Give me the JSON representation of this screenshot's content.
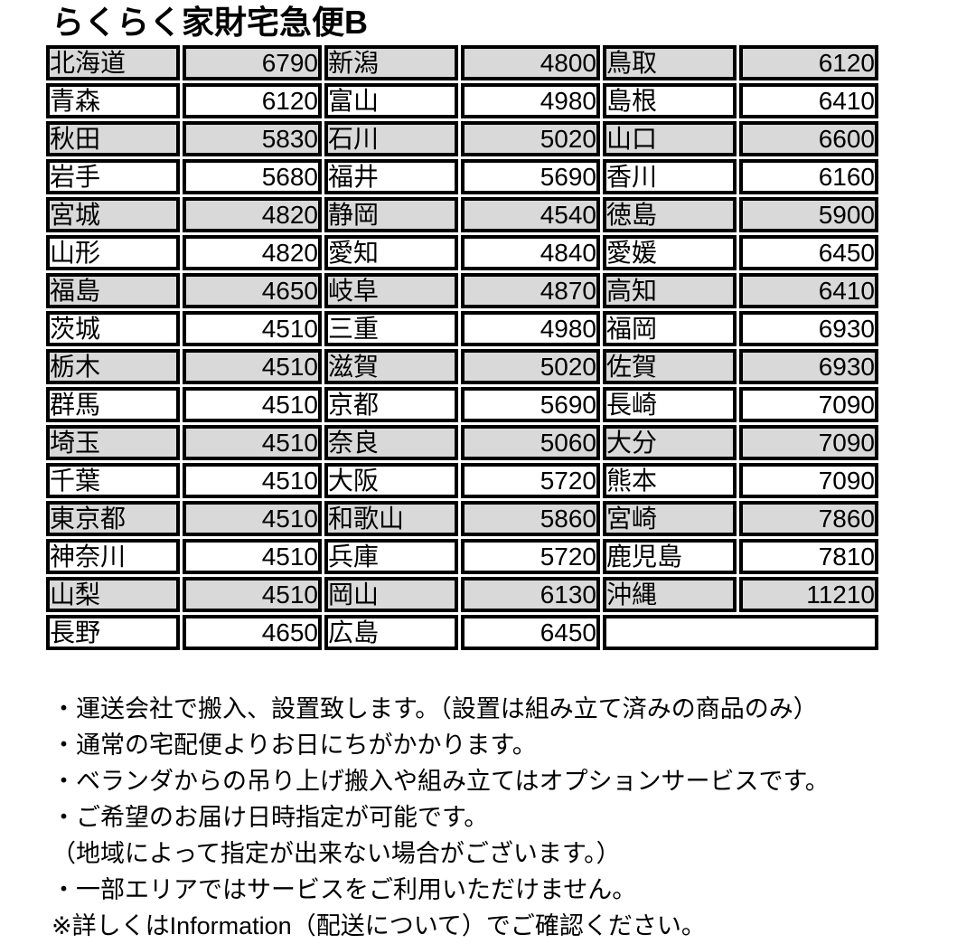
{
  "title": "らくらく家財宅急便B",
  "colors": {
    "row_shaded": "#d9d9d9",
    "border": "#000000",
    "background": "#ffffff"
  },
  "table": {
    "sections": [
      {
        "rows": [
          {
            "region": "北海道",
            "price": "6790"
          },
          {
            "region": "青森",
            "price": "6120"
          },
          {
            "region": "秋田",
            "price": "5830"
          },
          {
            "region": "岩手",
            "price": "5680"
          },
          {
            "region": "宮城",
            "price": "4820"
          },
          {
            "region": "山形",
            "price": "4820"
          },
          {
            "region": "福島",
            "price": "4650"
          },
          {
            "region": "茨城",
            "price": "4510"
          },
          {
            "region": "栃木",
            "price": "4510"
          },
          {
            "region": "群馬",
            "price": "4510"
          },
          {
            "region": "埼玉",
            "price": "4510"
          },
          {
            "region": "千葉",
            "price": "4510"
          },
          {
            "region": "東京都",
            "price": "4510"
          },
          {
            "region": "神奈川",
            "price": "4510"
          },
          {
            "region": "山梨",
            "price": "4510"
          },
          {
            "region": "長野",
            "price": "4650"
          }
        ]
      },
      {
        "rows": [
          {
            "region": "新潟",
            "price": "4800"
          },
          {
            "region": "富山",
            "price": "4980"
          },
          {
            "region": "石川",
            "price": "5020"
          },
          {
            "region": "福井",
            "price": "5690"
          },
          {
            "region": "静岡",
            "price": "4540"
          },
          {
            "region": "愛知",
            "price": "4840"
          },
          {
            "region": "岐阜",
            "price": "4870"
          },
          {
            "region": "三重",
            "price": "4980"
          },
          {
            "region": "滋賀",
            "price": "5020"
          },
          {
            "region": "京都",
            "price": "5690"
          },
          {
            "region": "奈良",
            "price": "5060"
          },
          {
            "region": "大阪",
            "price": "5720"
          },
          {
            "region": "和歌山",
            "price": "5860"
          },
          {
            "region": "兵庫",
            "price": "5720"
          },
          {
            "region": "岡山",
            "price": "6130"
          },
          {
            "region": "広島",
            "price": "6450"
          }
        ]
      },
      {
        "rows": [
          {
            "region": "鳥取",
            "price": "6120"
          },
          {
            "region": "島根",
            "price": "6410"
          },
          {
            "region": "山口",
            "price": "6600"
          },
          {
            "region": "香川",
            "price": "6160"
          },
          {
            "region": "徳島",
            "price": "5900"
          },
          {
            "region": "愛媛",
            "price": "6450"
          },
          {
            "region": "高知",
            "price": "6410"
          },
          {
            "region": "福岡",
            "price": "6930"
          },
          {
            "region": "佐賀",
            "price": "6930"
          },
          {
            "region": "長崎",
            "price": "7090"
          },
          {
            "region": "大分",
            "price": "7090"
          },
          {
            "region": "熊本",
            "price": "7090"
          },
          {
            "region": "宮崎",
            "price": "7860"
          },
          {
            "region": "鹿児島",
            "price": "7810"
          },
          {
            "region": "沖縄",
            "price": "11210"
          }
        ]
      }
    ]
  },
  "notes": [
    "・運送会社で搬入、設置致します。（設置は組み立て済みの商品のみ）",
    "・通常の宅配便よりお日にちがかかります。",
    "・ベランダからの吊り上げ搬入や組み立てはオプションサービスです。",
    "・ご希望のお届け日時指定が可能です。",
    "（地域によって指定が出来ない場合がございます。）",
    "・一部エリアではサービスをご利用いただけません。",
    "※詳しくはInformation（配送について）でご確認ください。"
  ]
}
